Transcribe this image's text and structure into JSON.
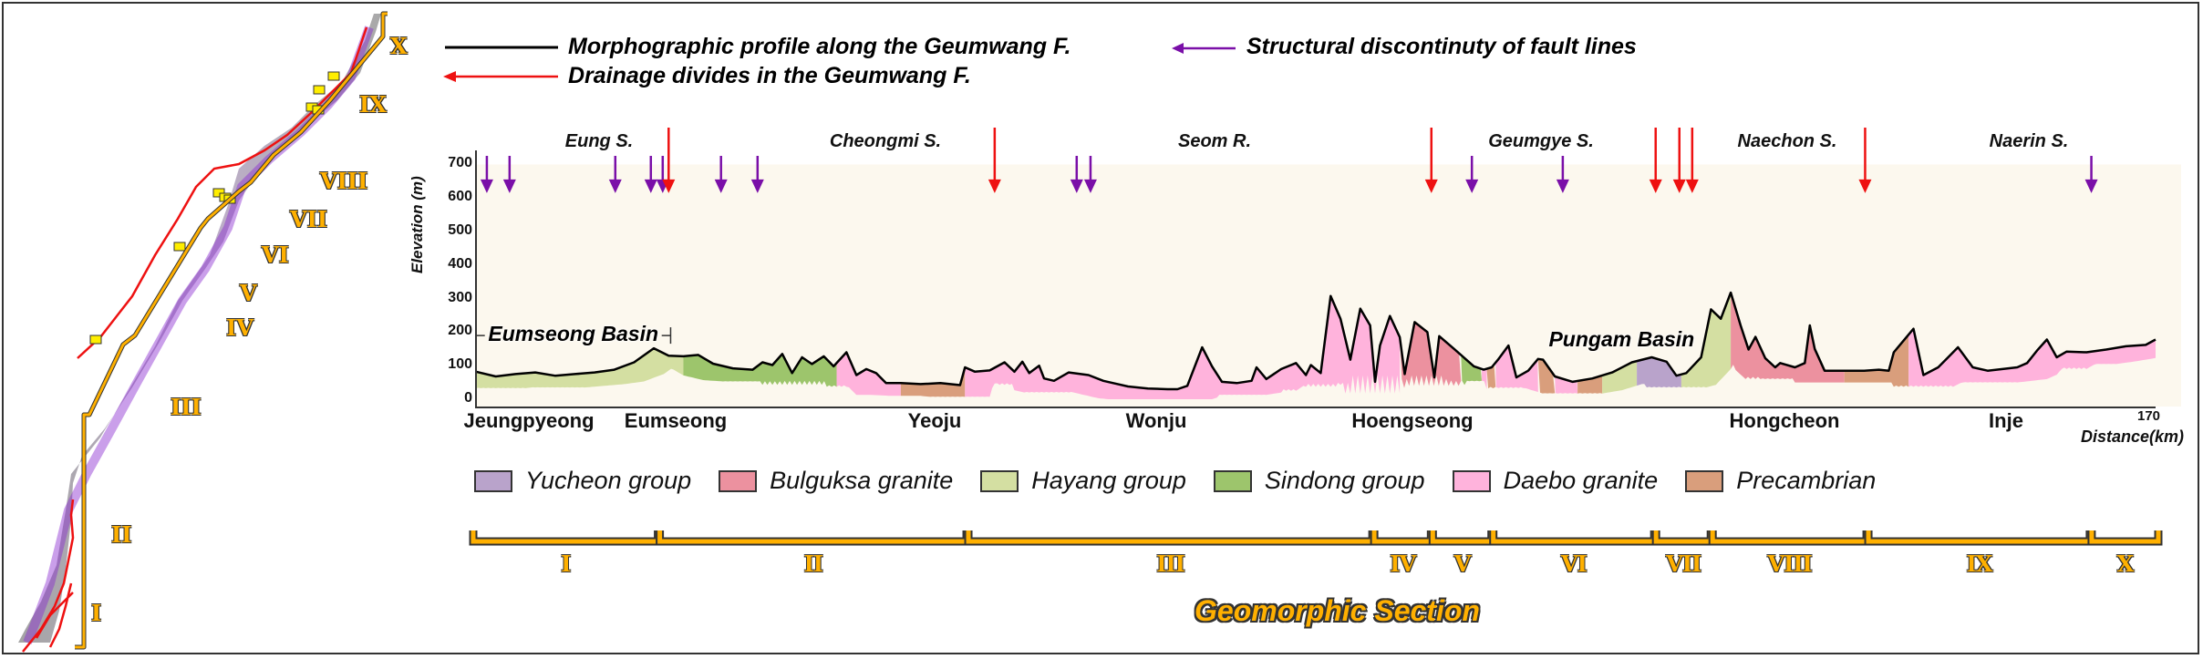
{
  "legend_top": {
    "profile_label": "Morphographic profile along the Geumwang F.",
    "drainage_label": "Drainage divides in the Geumwang F.",
    "structural_label": "Structural discontinuty of fault lines",
    "colors": {
      "profile": "#000000",
      "drainage": "#ee1111",
      "structural": "#7a0fa8"
    }
  },
  "map_panel": {
    "section_labels": [
      "I",
      "II",
      "III",
      "IV",
      "V",
      "VI",
      "VII",
      "VIII",
      "IX",
      "X"
    ]
  },
  "geology_legend": [
    {
      "label": "Yucheon group",
      "color": "#b9a3cb"
    },
    {
      "label": "Bulguksa granite",
      "color": "#ec919f"
    },
    {
      "label": "Hayang group",
      "color": "#d4dfa2"
    },
    {
      "label": "Sindong group",
      "color": "#9dc56c"
    },
    {
      "label": "Daebo granite",
      "color": "#ffb3dc"
    },
    {
      "label": "Precambrian",
      "color": "#d99e7c"
    }
  ],
  "geomorphic": {
    "title": "Geomorphic Section",
    "sections": [
      {
        "label": "I",
        "start_km": 0,
        "end_km": 18.8
      },
      {
        "label": "II",
        "start_km": 18.8,
        "end_km": 49.9
      },
      {
        "label": "III",
        "start_km": 49.9,
        "end_km": 90.8
      },
      {
        "label": "IV",
        "start_km": 90.8,
        "end_km": 96.7
      },
      {
        "label": "V",
        "start_km": 96.7,
        "end_km": 102.8
      },
      {
        "label": "VI",
        "start_km": 102.8,
        "end_km": 119.2
      },
      {
        "label": "VII",
        "start_km": 119.2,
        "end_km": 124.9
      },
      {
        "label": "VIII",
        "start_km": 124.9,
        "end_km": 140.6
      },
      {
        "label": "IX",
        "start_km": 140.6,
        "end_km": 163.1
      },
      {
        "label": "X",
        "start_km": 163.1,
        "end_km": 170
      }
    ]
  },
  "chart_data": {
    "type": "area",
    "title": "Morphographic profile along the Geumwang F.",
    "xlabel": "Distance(km)",
    "ylabel": "Elevation (m)",
    "xlim": [
      0,
      170
    ],
    "ylim": [
      0,
      700
    ],
    "yticks": [
      0,
      100,
      200,
      300,
      400,
      500,
      600,
      700
    ],
    "xticks_labeled": [
      {
        "km": 170,
        "label": "170"
      }
    ],
    "grid": false,
    "place_names": [
      {
        "label": "Jeungpyeong",
        "km": 4
      },
      {
        "label": "Eumseong",
        "km": 16.2
      },
      {
        "label": "Yeoju",
        "km": 46
      },
      {
        "label": "Wonju",
        "km": 73.5
      },
      {
        "label": "Hoengseong",
        "km": 102.5
      },
      {
        "label": "Hongcheon",
        "km": 138.5
      },
      {
        "label": "Inje",
        "km": 167.3
      }
    ],
    "stream_names": [
      {
        "label": "Eung S.",
        "km": 8.5
      },
      {
        "label": "Cheongmi S.",
        "km": 28
      },
      {
        "label": "Seom R.",
        "km": 49
      },
      {
        "label": "Geumgye S.",
        "km": 71
      },
      {
        "label": "Naechon S.",
        "km": 90
      },
      {
        "label": "Naerin S.",
        "km": 100
      }
    ],
    "basins": [
      {
        "label": "Eumseong Basin",
        "start_km": 0,
        "end_km": 19.7,
        "elevation_m": 190
      },
      {
        "label": "Pungam Basin",
        "start_km": 110.4,
        "end_km": 121.5,
        "elevation_m": 188
      }
    ],
    "drainage_divides_km": [
      19.5,
      52.5,
      96.7,
      119.4,
      121.8,
      123.1,
      140.6
    ],
    "structural_discontinuities_km": [
      1.1,
      3.4,
      14.1,
      17.7,
      18.9,
      24.8,
      28.5,
      60.8,
      62.2,
      100.8,
      110.0,
      163.5
    ],
    "profile": [
      [
        0,
        82
      ],
      [
        2,
        68
      ],
      [
        4,
        75
      ],
      [
        6,
        80
      ],
      [
        8,
        70
      ],
      [
        10,
        75
      ],
      [
        12,
        80
      ],
      [
        14,
        88
      ],
      [
        16,
        110
      ],
      [
        18,
        152
      ],
      [
        19.5,
        130
      ],
      [
        21,
        128
      ],
      [
        22.5,
        132
      ],
      [
        24,
        106
      ],
      [
        26,
        92
      ],
      [
        28,
        88
      ],
      [
        29,
        110
      ],
      [
        30,
        102
      ],
      [
        31,
        135
      ],
      [
        32,
        78
      ],
      [
        33,
        125
      ],
      [
        34,
        105
      ],
      [
        35.2,
        128
      ],
      [
        36.2,
        98
      ],
      [
        37.5,
        140
      ],
      [
        38.5,
        72
      ],
      [
        39.5,
        90
      ],
      [
        40.5,
        78
      ],
      [
        41.5,
        48
      ],
      [
        43,
        48
      ],
      [
        45,
        45
      ],
      [
        47,
        48
      ],
      [
        49,
        42
      ],
      [
        49.5,
        95
      ],
      [
        50.5,
        82
      ],
      [
        52,
        86
      ],
      [
        53.5,
        110
      ],
      [
        54.5,
        82
      ],
      [
        55.3,
        112
      ],
      [
        56,
        78
      ],
      [
        57,
        100
      ],
      [
        57.5,
        62
      ],
      [
        58.5,
        55
      ],
      [
        60,
        80
      ],
      [
        62,
        72
      ],
      [
        63.5,
        55
      ],
      [
        64.5,
        48
      ],
      [
        66,
        38
      ],
      [
        68,
        32
      ],
      [
        70,
        30
      ],
      [
        71,
        30
      ],
      [
        72,
        40
      ],
      [
        73.5,
        155
      ],
      [
        74.5,
        98
      ],
      [
        75.5,
        52
      ],
      [
        77,
        48
      ],
      [
        78.5,
        55
      ],
      [
        79,
        95
      ],
      [
        80,
        60
      ],
      [
        81.5,
        90
      ],
      [
        83,
        108
      ],
      [
        84,
        72
      ],
      [
        84.5,
        102
      ],
      [
        85.5,
        78
      ],
      [
        86.5,
        308
      ],
      [
        87.5,
        240
      ],
      [
        88.5,
        118
      ],
      [
        89.5,
        270
      ],
      [
        90.5,
        220
      ],
      [
        91,
        52
      ],
      [
        91.5,
        160
      ],
      [
        92.5,
        248
      ],
      [
        93.5,
        185
      ],
      [
        94,
        75
      ],
      [
        95,
        230
      ],
      [
        96.3,
        200
      ],
      [
        97,
        65
      ],
      [
        97.5,
        188
      ],
      [
        99,
        150
      ],
      [
        101,
        98
      ],
      [
        102,
        88
      ],
      [
        102.8,
        95
      ],
      [
        103.5,
        120
      ],
      [
        104.5,
        160
      ],
      [
        105.3,
        65
      ],
      [
        106.5,
        85
      ],
      [
        107.5,
        120
      ],
      [
        108,
        118
      ],
      [
        109.2,
        68
      ],
      [
        111,
        52
      ],
      [
        113,
        62
      ],
      [
        115,
        80
      ],
      [
        117,
        110
      ],
      [
        119,
        125
      ],
      [
        120.5,
        112
      ],
      [
        121.5,
        70
      ],
      [
        122.5,
        78
      ],
      [
        124,
        125
      ],
      [
        125,
        268
      ],
      [
        126,
        240
      ],
      [
        127,
        318
      ],
      [
        128,
        220
      ],
      [
        128.8,
        148
      ],
      [
        129.5,
        186
      ],
      [
        130.5,
        122
      ],
      [
        131.5,
        95
      ],
      [
        132,
        108
      ],
      [
        133.5,
        95
      ],
      [
        134.5,
        108
      ],
      [
        135,
        220
      ],
      [
        135.5,
        150
      ],
      [
        136.5,
        85
      ],
      [
        137.5,
        85
      ],
      [
        140.5,
        85
      ],
      [
        142,
        88
      ],
      [
        143,
        85
      ],
      [
        143.5,
        140
      ],
      [
        145.5,
        210
      ],
      [
        146.5,
        72
      ],
      [
        148,
        95
      ],
      [
        149,
        125
      ],
      [
        150,
        155
      ],
      [
        151.5,
        95
      ],
      [
        153,
        85
      ],
      [
        154.5,
        90
      ],
      [
        156,
        95
      ],
      [
        157,
        108
      ],
      [
        158,
        145
      ],
      [
        159,
        178
      ],
      [
        160,
        125
      ],
      [
        161,
        142
      ],
      [
        163,
        140
      ],
      [
        165,
        148
      ],
      [
        167,
        158
      ],
      [
        169,
        162
      ],
      [
        170,
        178
      ]
    ],
    "geology_segments": [
      {
        "unit": "Hayang group",
        "start_km": 0,
        "end_km": 21
      },
      {
        "unit": "Sindong group",
        "start_km": 21,
        "end_km": 36.5
      },
      {
        "unit": "Daebo granite",
        "start_km": 36.5,
        "end_km": 43
      },
      {
        "unit": "Precambrian",
        "start_km": 43,
        "end_km": 49.5
      },
      {
        "unit": "Daebo granite",
        "start_km": 49.5,
        "end_km": 93.5
      },
      {
        "unit": "Bulguksa granite",
        "start_km": 93.5,
        "end_km": 99.7
      },
      {
        "unit": "Sindong group",
        "start_km": 99.7,
        "end_km": 101.8
      },
      {
        "unit": "Daebo granite",
        "start_km": 101.8,
        "end_km": 102.3
      },
      {
        "unit": "Precambrian",
        "start_km": 102.3,
        "end_km": 103.2
      },
      {
        "unit": "Daebo granite",
        "start_km": 103.2,
        "end_km": 107.5
      },
      {
        "unit": "Precambrian",
        "start_km": 107.5,
        "end_km": 109.2
      },
      {
        "unit": "Daebo granite",
        "start_km": 109.2,
        "end_km": 111.5
      },
      {
        "unit": "Precambrian",
        "start_km": 111.5,
        "end_km": 114
      },
      {
        "unit": "Hayang group",
        "start_km": 114,
        "end_km": 117.5
      },
      {
        "unit": "Yucheon group",
        "start_km": 117.5,
        "end_km": 122
      },
      {
        "unit": "Hayang group",
        "start_km": 122,
        "end_km": 127
      },
      {
        "unit": "Bulguksa granite",
        "start_km": 127,
        "end_km": 138.5
      },
      {
        "unit": "Precambrian",
        "start_km": 138.5,
        "end_km": 145
      },
      {
        "unit": "Daebo granite",
        "start_km": 145,
        "end_km": 170
      }
    ]
  }
}
